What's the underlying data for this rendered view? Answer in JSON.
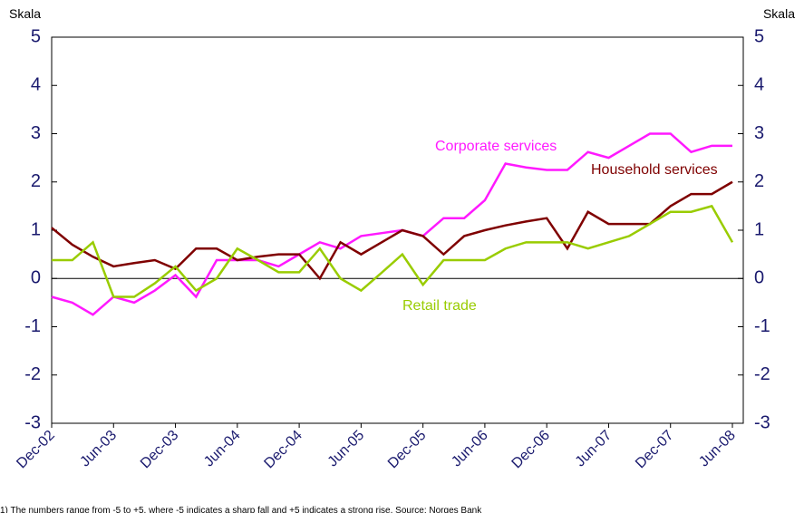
{
  "chart_data": {
    "type": "line",
    "y_label": "Skala",
    "y2_label": "Skala",
    "note": "1) The numbers range from -5 to +5, where -5 indicates a sharp fall and +5 indicates a strong rise. Source: Norges Bank",
    "categories": [
      "Dec-02",
      null,
      null,
      "Jun-03",
      null,
      null,
      "Dec-03",
      null,
      null,
      "Jun-04",
      null,
      null,
      "Dec-04",
      null,
      null,
      "Jun-05",
      null,
      null,
      "Dec-05",
      null,
      null,
      "Jun-06",
      null,
      null,
      "Dec-06",
      null,
      null,
      "Jun-07",
      null,
      null,
      "Dec-07",
      null,
      null,
      "Jun-08"
    ],
    "series": [
      {
        "name": "Corporate services",
        "color": "#ff19ff",
        "values": [
          -0.38,
          -0.5,
          -0.75,
          -0.38,
          -0.5,
          -0.25,
          0.07,
          -0.38,
          0.38,
          0.38,
          0.38,
          0.25,
          0.5,
          0.75,
          0.62,
          0.88,
          0.94,
          1.0,
          0.88,
          1.25,
          1.25,
          1.62,
          2.38,
          2.3,
          2.25,
          2.25,
          2.62,
          2.5,
          2.75,
          3.0,
          3.0,
          2.62,
          2.75,
          2.75
        ]
      },
      {
        "name": "Household services",
        "color": "#7f0000",
        "values": [
          1.05,
          0.7,
          0.45,
          0.25,
          0.32,
          0.38,
          0.2,
          0.62,
          0.62,
          0.38,
          0.45,
          0.5,
          0.5,
          0.0,
          0.75,
          0.5,
          0.75,
          1.0,
          0.88,
          0.5,
          0.88,
          1.0,
          1.1,
          1.18,
          1.25,
          0.62,
          1.38,
          1.13,
          1.13,
          1.13,
          1.5,
          1.75,
          1.75,
          2.0
        ]
      },
      {
        "name": "Retail trade",
        "color": "#99cc00",
        "values": [
          0.38,
          0.38,
          0.75,
          -0.38,
          -0.38,
          -0.1,
          0.25,
          -0.25,
          0.0,
          0.62,
          0.38,
          0.13,
          0.13,
          0.62,
          0.0,
          -0.25,
          0.12,
          0.5,
          -0.13,
          0.38,
          0.38,
          0.38,
          0.62,
          0.75,
          0.75,
          0.75,
          0.62,
          0.75,
          0.88,
          1.13,
          1.38,
          1.38,
          1.5,
          0.75
        ]
      }
    ],
    "ylim": [
      -3,
      5
    ],
    "yticks": [
      -3,
      -2,
      -1,
      0,
      1,
      2,
      3,
      4,
      5
    ],
    "y2lim": [
      -3,
      5
    ],
    "y2ticks": [
      -3,
      -2,
      -1,
      0,
      1,
      2,
      3,
      4,
      5
    ]
  }
}
